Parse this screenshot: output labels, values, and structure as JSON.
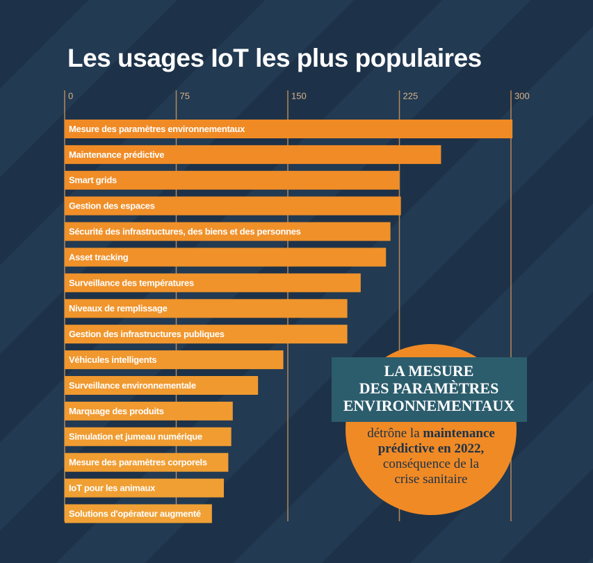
{
  "chart_data": {
    "type": "hbar",
    "title": "Les usages IoT les plus populaires",
    "categories": [
      "Mesure des paramètres environnementaux",
      "Maintenance prédictive",
      "Smart grids",
      "Gestion des espaces",
      "Sécurité des infrastructures, des biens et des personnes",
      "Asset tracking",
      "Surveillance des températures",
      "Niveaux de remplissage",
      "Gestion des infrastructures publiques",
      "Véhicules intelligents",
      "Surveillance environnementale",
      "Marquage des produits",
      "Simulation et jumeau numérique",
      "Mesure des paramètres corporels",
      "IoT pour les animaux",
      "Solutions d'opérateur augmenté"
    ],
    "values": [
      301,
      253,
      225,
      226,
      219,
      216,
      199,
      190,
      190,
      147,
      130,
      113,
      112,
      110,
      107,
      99
    ],
    "colors": [
      "#f08a25",
      "#f08b26",
      "#f08d27",
      "#f08e28",
      "#f09029",
      "#f0912a",
      "#f0932b",
      "#f0942c",
      "#f0962d",
      "#f0972e",
      "#f0992f",
      "#f09a30",
      "#f09c31",
      "#f09d32",
      "#f09f33",
      "#f0a034"
    ],
    "xlim": [
      0,
      300
    ],
    "xticks": [
      0,
      75,
      150,
      225,
      300
    ],
    "grid": true,
    "grid_color": "#b8875a",
    "annotation": {
      "heading": [
        "LA MESURE",
        "DES PARAMÈTRES",
        "ENVIRONNEMENTAUX"
      ],
      "body": [
        [
          {
            "text": "détrône la "
          },
          {
            "text": "maintenance",
            "bold": true
          }
        ],
        [
          {
            "text": "prédictive en 2022,",
            "bold": true
          }
        ],
        [
          {
            "text": "conséquence de la"
          }
        ],
        [
          {
            "text": "crise sanitaire"
          }
        ]
      ],
      "banner_color": "#2c5d6d",
      "circle_color": "#f08a25"
    }
  }
}
